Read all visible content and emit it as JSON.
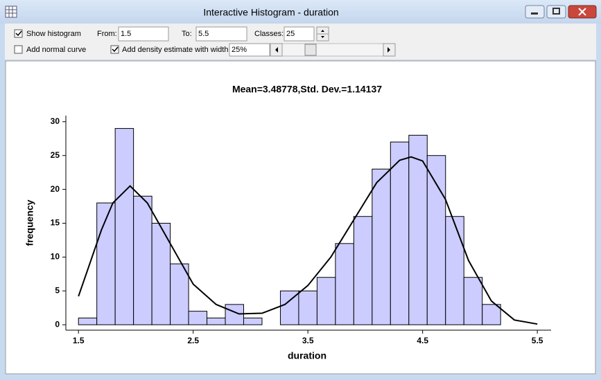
{
  "window": {
    "title": "Interactive Histogram - duration"
  },
  "controls": {
    "show_histogram": "Show histogram",
    "from_label": "From:",
    "from_value": "1.5",
    "to_label": "To:",
    "to_value": "5.5",
    "classes_label": "Classes:",
    "classes_value": "25",
    "normal_curve": "Add normal curve",
    "density": "Add density estimate with width:",
    "width_value": "25%"
  },
  "chart_data": {
    "type": "histogram",
    "title": "Mean=3.48778,Std. Dev.=1.14137",
    "x_label": "duration",
    "y_label": "frequency",
    "bins": [
      1.5,
      1.66,
      1.82,
      1.98,
      2.14,
      2.3,
      2.46,
      2.62,
      2.78,
      2.94,
      3.1,
      3.26,
      3.42,
      3.58,
      3.74,
      3.9,
      4.06,
      4.22,
      4.38,
      4.54,
      4.7,
      4.86,
      5.02,
      5.18,
      5.34,
      5.5
    ],
    "values": [
      1,
      18,
      29,
      19,
      15,
      9,
      2,
      1,
      3,
      1,
      0,
      5,
      5,
      7,
      12,
      16,
      23,
      27,
      28,
      25,
      16,
      7,
      3,
      0,
      0
    ],
    "color": "#ccccff",
    "density": {
      "color": "#000000",
      "x": [
        1.5,
        1.7,
        1.8,
        1.95,
        2.1,
        2.3,
        2.5,
        2.7,
        2.9,
        3.1,
        3.3,
        3.5,
        3.7,
        3.9,
        4.1,
        4.3,
        4.4,
        4.5,
        4.7,
        4.9,
        5.1,
        5.3,
        5.5
      ],
      "values": [
        4.2,
        14,
        18,
        20.5,
        18,
        12,
        6,
        3,
        1.6,
        1.7,
        3,
        5.8,
        10,
        15.5,
        21,
        24.3,
        24.8,
        24.2,
        18.5,
        9.5,
        3.5,
        0.7,
        0.1
      ]
    },
    "xlim": [
      1.39,
      5.62
    ],
    "ylim": [
      -0.8,
      30.9
    ],
    "xticks": [
      1.5,
      2.5,
      3.5,
      4.5,
      5.5
    ],
    "yticks": [
      0,
      5,
      10,
      15,
      20,
      25,
      30
    ]
  }
}
